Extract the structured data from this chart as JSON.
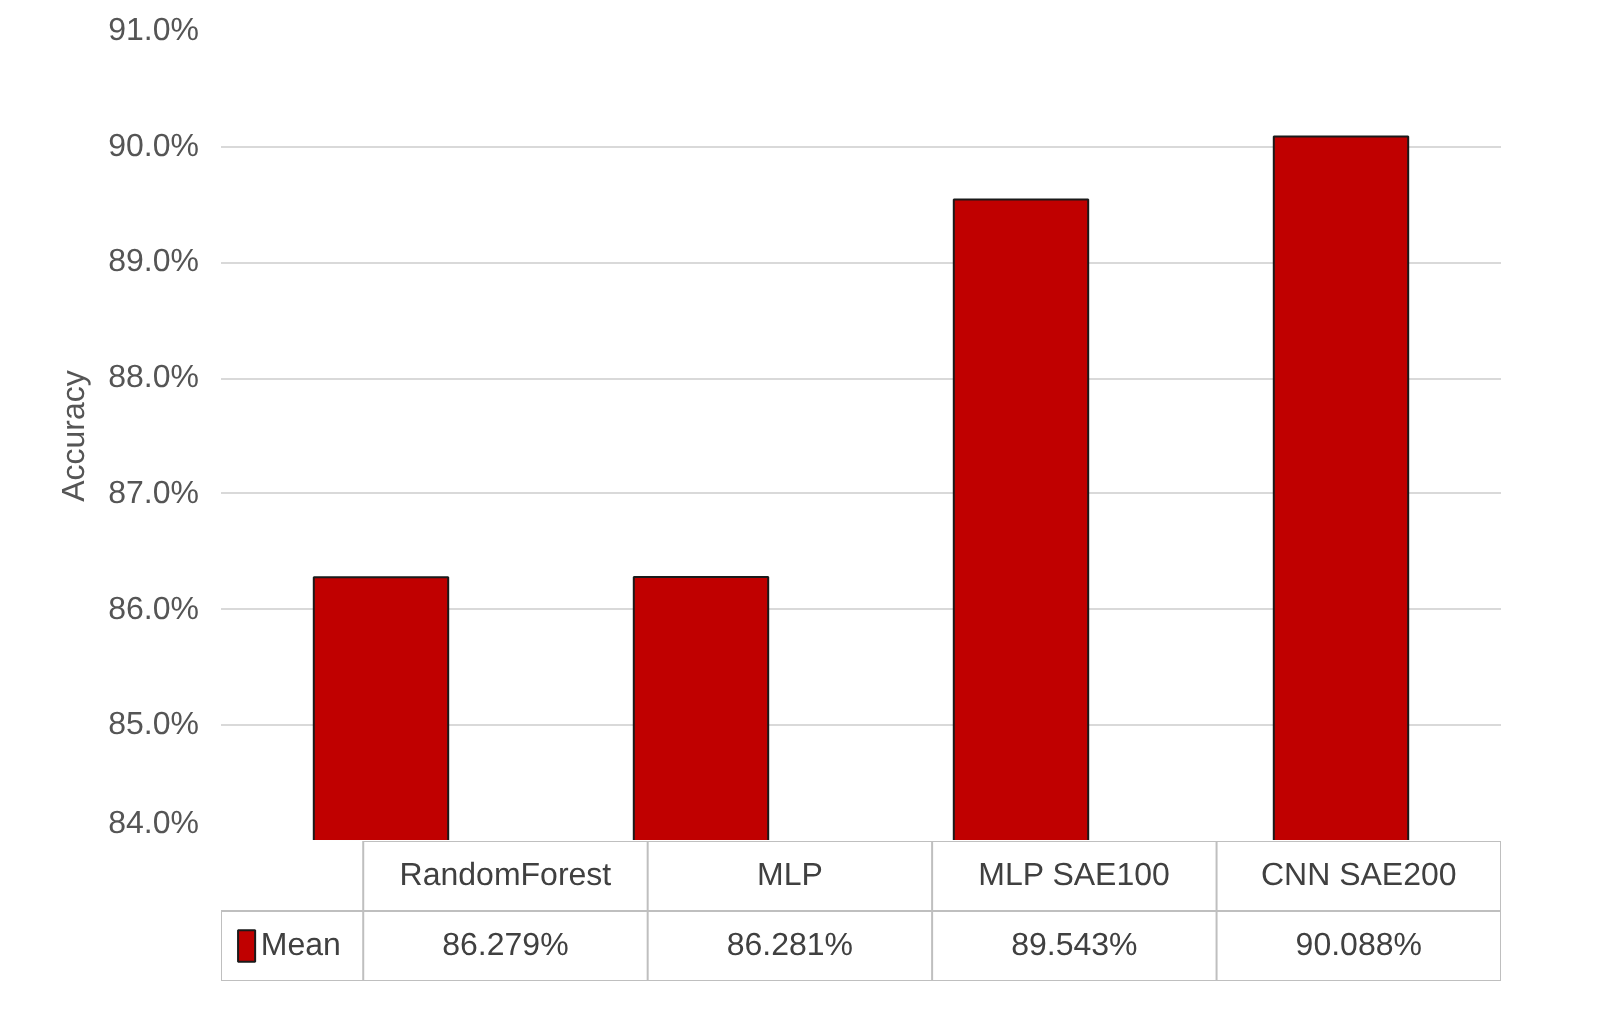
{
  "chart_data": {
    "type": "bar",
    "ylabel": "Accuracy",
    "categories": [
      "RandomForest",
      "MLP",
      "MLP SAE100",
      "CNN SAE200"
    ],
    "series": [
      {
        "name": "Mean",
        "color": "#c00000",
        "values": [
          86.279,
          86.281,
          89.543,
          90.088
        ],
        "value_labels": [
          "86.279%",
          "86.281%",
          "89.543%",
          "90.088%"
        ]
      }
    ],
    "ylim": [
      84,
      91
    ],
    "yticks": [
      {
        "value": 84,
        "label": "84.0%"
      },
      {
        "value": 85,
        "label": "85.0%"
      },
      {
        "value": 86,
        "label": "86.0%"
      },
      {
        "value": 87,
        "label": "87.0%"
      },
      {
        "value": 88,
        "label": "88.0%"
      },
      {
        "value": 89,
        "label": "89.0%"
      },
      {
        "value": 90,
        "label": "90.0%"
      },
      {
        "value": 91,
        "label": "91.0%"
      }
    ],
    "grid": "y",
    "legend": "bottom"
  }
}
